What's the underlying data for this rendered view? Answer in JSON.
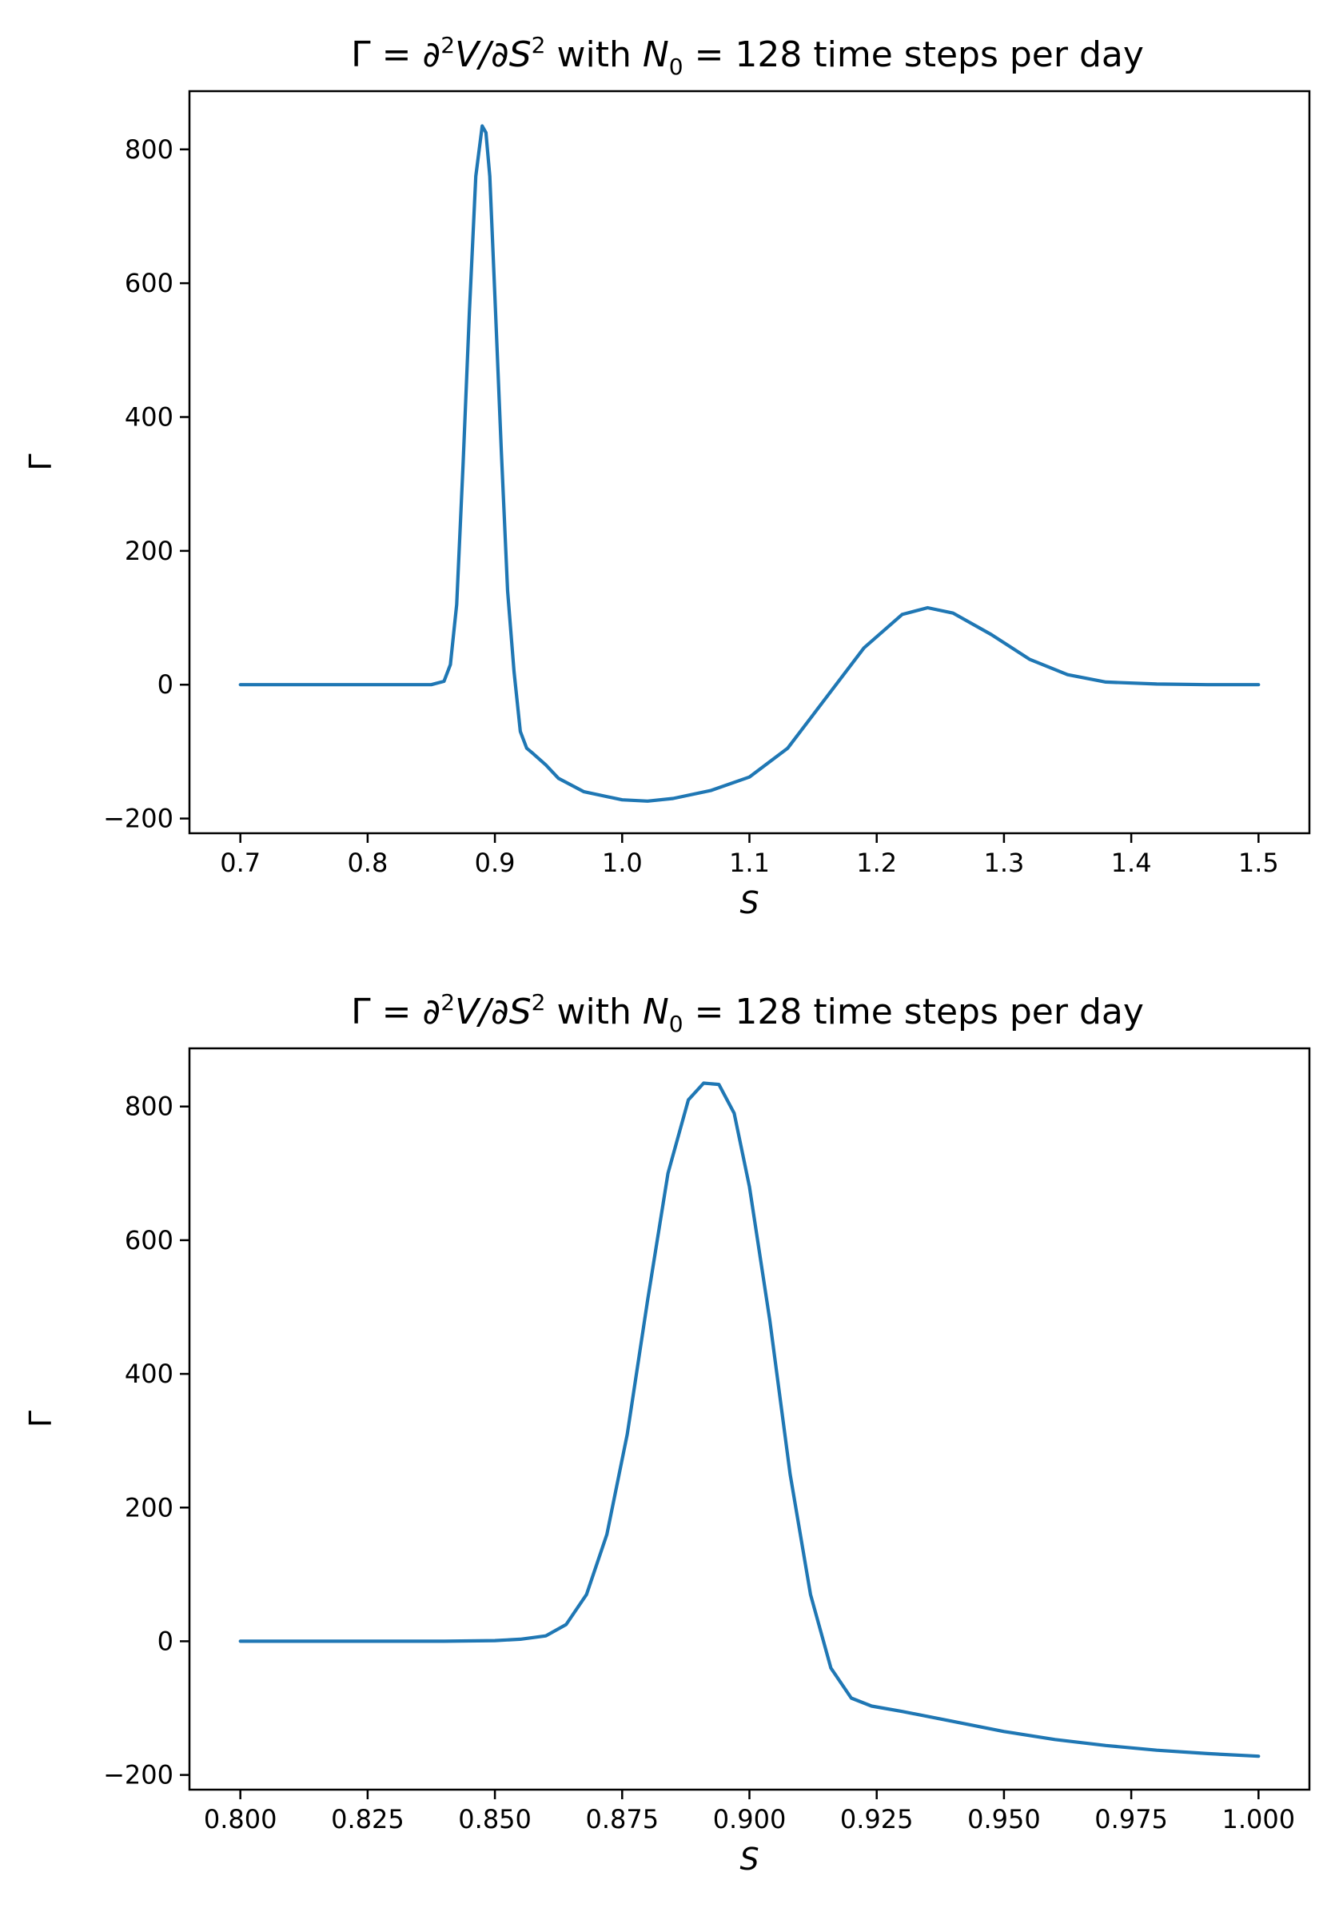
{
  "colors": {
    "series": "#1f77b4"
  },
  "chart_data": [
    {
      "type": "line",
      "title": "Γ = ∂²V/∂S² with N₀ = 128 time steps per day",
      "title_parts": {
        "lead": "Γ = ∂",
        "sq1": "2",
        "mid": "V/∂S",
        "sq2": "2",
        "with": " with ",
        "n": "N",
        "sub0": "0",
        "tail": " = 128 time steps per day"
      },
      "xlabel": "S",
      "ylabel": "Γ",
      "xlim": [
        0.66,
        1.54
      ],
      "ylim": [
        -222,
        887
      ],
      "xticks": [
        0.7,
        0.8,
        0.9,
        1.0,
        1.1,
        1.2,
        1.3,
        1.4,
        1.5
      ],
      "xtick_labels": [
        "0.7",
        "0.8",
        "0.9",
        "1.0",
        "1.1",
        "1.2",
        "1.3",
        "1.4",
        "1.5"
      ],
      "yticks": [
        -200,
        0,
        200,
        400,
        600,
        800
      ],
      "ytick_labels": [
        "−200",
        "0",
        "200",
        "400",
        "600",
        "800"
      ],
      "grid": false,
      "series": [
        {
          "x": [
            0.7,
            0.75,
            0.8,
            0.85,
            0.86,
            0.865,
            0.87,
            0.875,
            0.88,
            0.885,
            0.89,
            0.893,
            0.896,
            0.9,
            0.905,
            0.91,
            0.915,
            0.92,
            0.925,
            0.93,
            0.94,
            0.95,
            0.97,
            1.0,
            1.02,
            1.04,
            1.07,
            1.1,
            1.13,
            1.16,
            1.19,
            1.22,
            1.24,
            1.26,
            1.29,
            1.32,
            1.35,
            1.38,
            1.42,
            1.46,
            1.5
          ],
          "y": [
            0,
            0,
            0,
            0,
            5,
            30,
            120,
            330,
            560,
            760,
            835,
            825,
            760,
            580,
            350,
            140,
            20,
            -70,
            -95,
            -103,
            -120,
            -140,
            -160,
            -172,
            -174,
            -170,
            -158,
            -138,
            -95,
            -20,
            55,
            105,
            115,
            107,
            75,
            38,
            15,
            4,
            1,
            0,
            0
          ]
        }
      ]
    },
    {
      "type": "line",
      "title": "Γ = ∂²V/∂S² with N₀ = 128 time steps per day",
      "title_parts": {
        "lead": "Γ = ∂",
        "sq1": "2",
        "mid": "V/∂S",
        "sq2": "2",
        "with": " with ",
        "n": "N",
        "sub0": "0",
        "tail": " = 128 time steps per day"
      },
      "xlabel": "S",
      "ylabel": "Γ",
      "xlim": [
        0.79,
        1.01
      ],
      "ylim": [
        -222,
        887
      ],
      "xticks": [
        0.8,
        0.825,
        0.85,
        0.875,
        0.9,
        0.925,
        0.95,
        0.975,
        1.0
      ],
      "xtick_labels": [
        "0.800",
        "0.825",
        "0.850",
        "0.875",
        "0.900",
        "0.925",
        "0.950",
        "0.975",
        "1.000"
      ],
      "yticks": [
        -200,
        0,
        200,
        400,
        600,
        800
      ],
      "ytick_labels": [
        "−200",
        "0",
        "200",
        "400",
        "600",
        "800"
      ],
      "grid": false,
      "series": [
        {
          "x": [
            0.8,
            0.82,
            0.84,
            0.85,
            0.855,
            0.86,
            0.864,
            0.868,
            0.872,
            0.876,
            0.88,
            0.884,
            0.888,
            0.891,
            0.894,
            0.897,
            0.9,
            0.904,
            0.908,
            0.912,
            0.916,
            0.92,
            0.924,
            0.93,
            0.94,
            0.95,
            0.96,
            0.97,
            0.98,
            0.99,
            1.0
          ],
          "y": [
            0,
            0,
            0,
            1,
            3,
            8,
            25,
            70,
            160,
            310,
            510,
            700,
            810,
            835,
            833,
            790,
            680,
            480,
            250,
            70,
            -40,
            -85,
            -97,
            -105,
            -120,
            -135,
            -147,
            -156,
            -163,
            -168,
            -172
          ]
        }
      ]
    }
  ]
}
